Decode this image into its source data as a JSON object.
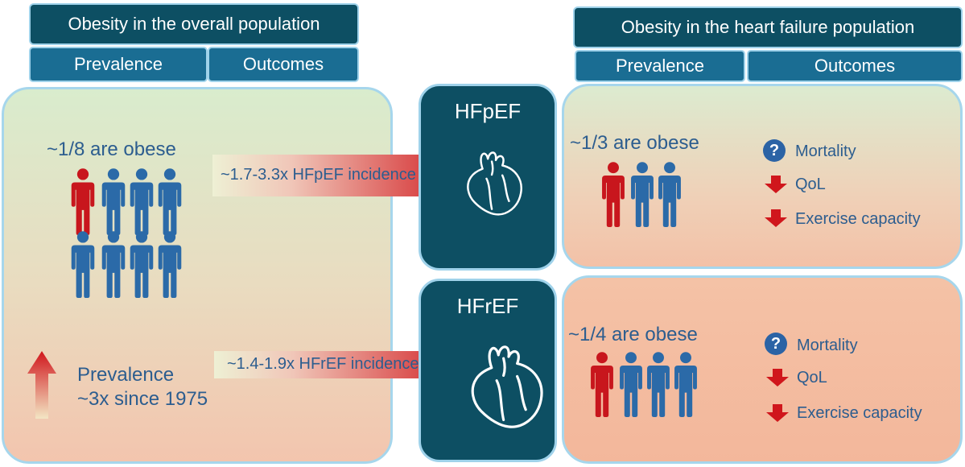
{
  "left": {
    "header": "Obesity in the overall population",
    "tabs": [
      "Prevalence",
      "Outcomes"
    ],
    "prevalence_text": "~1/8 are obese",
    "trend_line1": "Prevalence",
    "trend_line2": "~3x since 1975"
  },
  "right": {
    "header": "Obesity in the heart failure population",
    "tabs": [
      "Prevalence",
      "Outcomes"
    ]
  },
  "arrows": {
    "hfpef": "~1.7-3.3x HFpEF incidence",
    "hfref": "~1.4-1.9x HFrEF incidence"
  },
  "hfpef": {
    "label": "HFpEF",
    "prevalence": "~1/3 are obese",
    "outcomes": [
      "Mortality",
      "QoL",
      "Exercise capacity"
    ]
  },
  "hfref": {
    "label": "HFrEF",
    "prevalence": "~1/4 are obese",
    "outcomes": [
      "Mortality",
      "QoL",
      "Exercise capacity"
    ]
  },
  "colors": {
    "navy": "#0d4f63",
    "tab_blue": "#1a6d93",
    "person_blue": "#2b6aa8",
    "person_red": "#c8161d",
    "arrow_red": "#d0161c",
    "text_blue": "#2c5d8f"
  }
}
